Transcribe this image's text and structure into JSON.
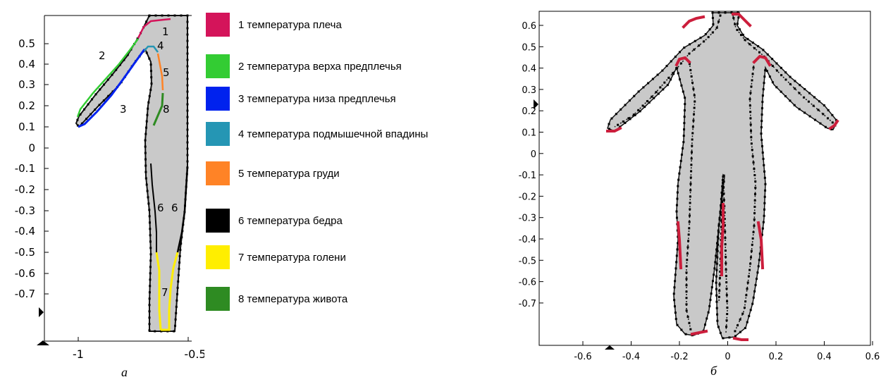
{
  "left_panel": {
    "caption": "а",
    "y_ticks": [
      "0.5",
      "0.4",
      "0.3",
      "0.2",
      "0.1",
      "0",
      "-0.1",
      "-0.2",
      "-0.3",
      "-0.4",
      "-0.5",
      "-0.6",
      "-0.7"
    ],
    "x_ticks": [
      "-1",
      "-0.5"
    ],
    "region_labels": [
      "1",
      "2",
      "3",
      "4",
      "5",
      "8",
      "6",
      "6",
      "7"
    ]
  },
  "legend": [
    {
      "label": "1 температура плеча",
      "color": "#d4145a"
    },
    {
      "label": "2 температура верха предплечья",
      "color": "#33cc33"
    },
    {
      "label": "3 температура низа предплечья",
      "color": "#0022ee"
    },
    {
      "label": "4 температура подмышечной впадины",
      "color": "#2596b4"
    },
    {
      "label": "5 температура груди",
      "color": "#ff8326"
    },
    {
      "label": "6 температура бедра",
      "color": "#000000"
    },
    {
      "label": "7 температура голени",
      "color": "#ffee00"
    },
    {
      "label": "8 температура живота",
      "color": "#2e8b22"
    }
  ],
  "right_panel": {
    "caption": "б",
    "y_ticks": [
      "0.6",
      "0.5",
      "0.4",
      "0.3",
      "0.2",
      "0.1",
      "0",
      "-0.1",
      "-0.2",
      "-0.3",
      "-0.4",
      "-0.5",
      "-0.6",
      "-0.7"
    ],
    "x_ticks": [
      "-0.6",
      "-0.4",
      "-0.2",
      "0",
      "0.2",
      "0.4",
      "0.6"
    ],
    "boundary_color": "#cc1e3c"
  },
  "colors": {
    "body_fill": "#c9c9c9",
    "outline": "#222222"
  }
}
